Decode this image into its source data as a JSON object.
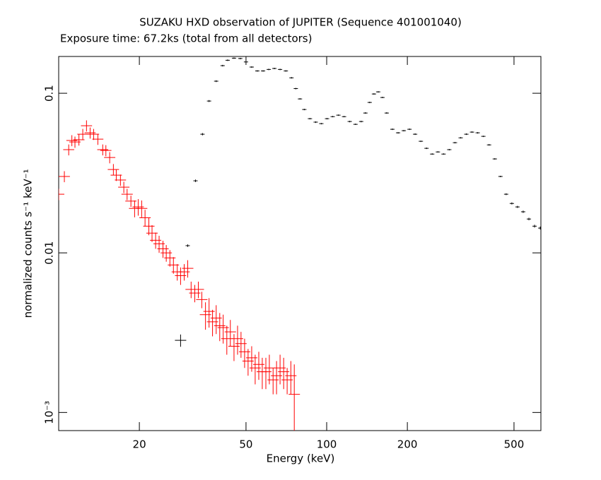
{
  "chart_data": {
    "type": "scatter",
    "title": "SUZAKU HXD observation of JUPITER (Sequence 401001040)",
    "subtitle": "Exposure time: 67.2ks (total from all detectors)",
    "x_label": "Energy (keV)",
    "y_label": "normalized counts s⁻¹ keV⁻¹",
    "xscale": "log",
    "yscale": "log",
    "xlim": [
      10,
      630
    ],
    "ylim": [
      0.00077,
      0.17
    ],
    "xticks": [
      20,
      50,
      100,
      200,
      500
    ],
    "yticks": [
      0.1,
      0.01,
      {
        "value": 0.001,
        "label": "10⁻³"
      }
    ],
    "series": [
      {
        "color": "#ff0000",
        "x": [
          10.0,
          10.5,
          10.9,
          11.2,
          11.5,
          11.9,
          12.3,
          12.7,
          13.1,
          13.5,
          14.0,
          14.6,
          15.0,
          15.5,
          16.0,
          16.4,
          17.0,
          17.5,
          18.0,
          18.6,
          19.2,
          19.8,
          20.4,
          21.0,
          21.7,
          22.3,
          23.0,
          23.7,
          24.5,
          25.2,
          26.0,
          26.8,
          27.7,
          28.5,
          29.4,
          30.3,
          31.2,
          32.2,
          33.2,
          34.2,
          35.3,
          36.4,
          37.5,
          38.7,
          39.9,
          41.1,
          42.4,
          43.7,
          45.1,
          46.5,
          47.9,
          49.4,
          50.9,
          52.5,
          54.1,
          55.8,
          57.5,
          59.3,
          61.1,
          63.1,
          65.0,
          67.0,
          69.1,
          71.2,
          73.5,
          75.7
        ],
        "values": [
          0.0233,
          0.0301,
          0.0443,
          0.0506,
          0.0495,
          0.0511,
          0.0554,
          0.0626,
          0.0565,
          0.0554,
          0.0516,
          0.0443,
          0.0438,
          0.0396,
          0.0333,
          0.0307,
          0.0286,
          0.0258,
          0.0233,
          0.0211,
          0.019,
          0.0194,
          0.019,
          0.0166,
          0.0147,
          0.0133,
          0.012,
          0.0114,
          0.0106,
          0.01,
          0.0093,
          0.0084,
          0.0076,
          0.0072,
          0.0076,
          0.008,
          0.0059,
          0.0056,
          0.0059,
          0.0051,
          0.0041,
          0.0043,
          0.0037,
          0.0039,
          0.0035,
          0.0034,
          0.0029,
          0.0032,
          0.0026,
          0.0029,
          0.0027,
          0.0024,
          0.0021,
          0.0022,
          0.0019,
          0.002,
          0.0018,
          0.0018,
          0.0019,
          0.0016,
          0.0017,
          0.0019,
          0.0018,
          0.0016,
          0.0017,
          0.0013
        ],
        "errors": [
          0.0019,
          0.0024,
          0.0035,
          0.004,
          0.004,
          0.0041,
          0.0044,
          0.005,
          0.0045,
          0.0044,
          0.0041,
          0.0035,
          0.0035,
          0.0032,
          0.0027,
          0.0025,
          0.0023,
          0.0021,
          0.0019,
          0.0017,
          0.0023,
          0.0023,
          0.0023,
          0.002,
          0.0018,
          0.0016,
          0.0014,
          0.0014,
          0.0013,
          0.0012,
          0.0011,
          0.001,
          0.0009,
          0.0009,
          0.0009,
          0.001,
          0.0007,
          0.0007,
          0.0007,
          0.0006,
          0.0008,
          0.0009,
          0.0007,
          0.0008,
          0.0007,
          0.0007,
          0.0006,
          0.0006,
          0.0005,
          0.0006,
          0.0005,
          0.0005,
          0.0004,
          0.0004,
          0.0004,
          0.0004,
          0.0004,
          0.0004,
          0.0004,
          0.0003,
          0.0004,
          0.0004,
          0.0004,
          0.0003,
          0.0004,
          0.0007
        ]
      },
      {
        "color": "#000000",
        "x": [
          28.5,
          30.3,
          32.4,
          34.4,
          36.4,
          38.7,
          40.9,
          42.7,
          45.1,
          47.6,
          50.0,
          52.5,
          55.1,
          57.9,
          60.8,
          63.8,
          67.0,
          70.4,
          73.9,
          76.7,
          79.5,
          82.5,
          86.6,
          91.0,
          95.5,
          100.3,
          105.3,
          110.6,
          116.1,
          121.9,
          128.1,
          134.5,
          139.5,
          144.7,
          150.1,
          155.7,
          161.5,
          167.5,
          175.9,
          184.7,
          194.0,
          203.7,
          213.8,
          224.6,
          235.8,
          247.6,
          260.0,
          273.0,
          286.7,
          301.1,
          316.2,
          332.0,
          348.6,
          366.0,
          384.3,
          403.6,
          423.9,
          445.1,
          467.4,
          490.8,
          515.2,
          541.0,
          568.3,
          596.7,
          626.6
        ],
        "values": [
          0.00283,
          0.0111,
          0.0283,
          0.0554,
          0.0894,
          0.119,
          0.149,
          0.161,
          0.166,
          0.165,
          0.157,
          0.146,
          0.138,
          0.138,
          0.141,
          0.143,
          0.141,
          0.138,
          0.125,
          0.107,
          0.0922,
          0.0791,
          0.0693,
          0.0659,
          0.0645,
          0.0693,
          0.0714,
          0.0729,
          0.0714,
          0.0665,
          0.0639,
          0.0665,
          0.0752,
          0.0876,
          0.099,
          0.102,
          0.0941,
          0.0752,
          0.0595,
          0.0565,
          0.0583,
          0.0595,
          0.0554,
          0.05,
          0.0452,
          0.0416,
          0.0429,
          0.0416,
          0.0443,
          0.049,
          0.0526,
          0.0554,
          0.0571,
          0.0565,
          0.0537,
          0.0475,
          0.0388,
          0.0301,
          0.0233,
          0.0204,
          0.0194,
          0.0181,
          0.0163,
          0.0147,
          0.0143
        ],
        "errors": [
          0.00025,
          0.0002,
          0.0005,
          0.0009,
          0.0013,
          0.0015,
          0.0017,
          0.0017,
          0.0017,
          0.0017,
          0.0016,
          0.0015,
          0.0014,
          0.0014,
          0.0014,
          0.0014,
          0.0014,
          0.0014,
          0.0013,
          0.0011,
          0.0009,
          0.0008,
          0.0007,
          0.0007,
          0.0006,
          0.0007,
          0.0007,
          0.0007,
          0.0007,
          0.0007,
          0.0006,
          0.0007,
          0.0008,
          0.0009,
          0.001,
          0.001,
          0.0009,
          0.0008,
          0.0006,
          0.0006,
          0.0006,
          0.0006,
          0.0006,
          0.0005,
          0.0005,
          0.0004,
          0.0004,
          0.0004,
          0.0004,
          0.0005,
          0.0005,
          0.0006,
          0.0006,
          0.0006,
          0.0005,
          0.0005,
          0.0004,
          0.0003,
          0.0003,
          0.0003,
          0.0003,
          0.0003,
          0.0003,
          0.0003,
          0.0003
        ]
      }
    ]
  }
}
